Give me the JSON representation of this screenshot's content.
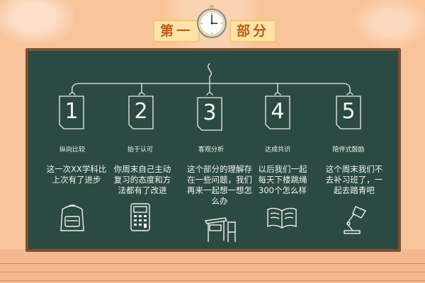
{
  "header": {
    "title_left": "第一",
    "title_right": "部分"
  },
  "items": [
    {
      "number": "1",
      "label": "纵向比较",
      "text": "这一次XX学科比上次有了进步",
      "icon": "backpack-icon"
    },
    {
      "number": "2",
      "label": "始于认可",
      "text": "你周末自己主动复习的态度和方法都有了改进",
      "icon": "calculator-icon"
    },
    {
      "number": "3",
      "label": "客观分析",
      "text": "这个部分的理解存在一些问题，我们再来一起想一想怎么办",
      "icon": "desk-chair-icon"
    },
    {
      "number": "4",
      "label": "达成共识",
      "text": "以后我们一起每天下楼跳绳300个怎么样",
      "icon": "open-book-icon"
    },
    {
      "number": "5",
      "label": "陪伴式鼓励",
      "text": "这个周末我们不去补习班了，一起去踏青吧",
      "icon": "desk-lamp-icon"
    }
  ],
  "colors": {
    "wall": "#f9c49a",
    "board": "#2c4a44",
    "frame": "#7a5134",
    "chalk": "#f4f4ee",
    "title_text": "#c55a1a",
    "title_box": "#fde3a6"
  }
}
